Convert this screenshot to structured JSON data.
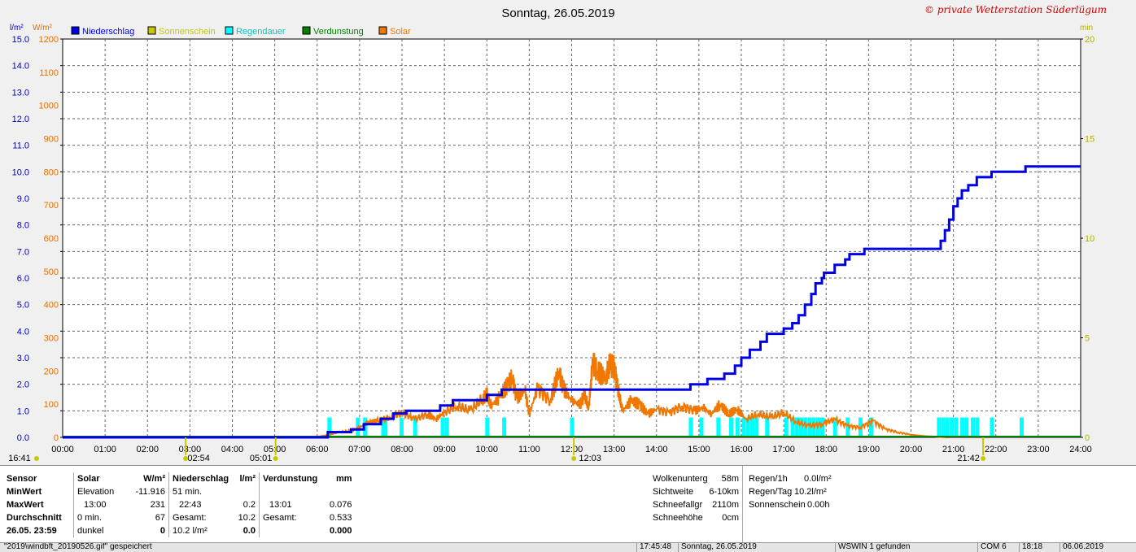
{
  "title": "Sonntag, 26.05.2019",
  "watermark": "© private Wetterstation Süderlügum",
  "units": {
    "left1": "l/m²",
    "left2": "W/m²",
    "right": "min"
  },
  "colors": {
    "rain": "#0000e6",
    "sun": "#c8c800",
    "rain_duration": "#00ffff",
    "evaporation": "#008000",
    "solar": "#f07800"
  },
  "legend": [
    {
      "label": "Niederschlag",
      "color": "#0000e6",
      "icon": "rain-legend-swatch"
    },
    {
      "label": "Sonnenschein",
      "color": "#c8c800",
      "icon": "sun-legend-swatch"
    },
    {
      "label": "Regendauer",
      "color": "#00ffff",
      "icon": "rain-duration-legend-swatch"
    },
    {
      "label": "Verdunstung",
      "color": "#008000",
      "icon": "evaporation-legend-swatch"
    },
    {
      "label": "Solar",
      "color": "#f07800",
      "icon": "solar-legend-swatch"
    }
  ],
  "chart_data": {
    "type": "line",
    "title": "Sonntag, 26.05.2019",
    "x_ticks": [
      "00:00",
      "01:00",
      "02:00",
      "03:00",
      "04:00",
      "05:00",
      "06:00",
      "07:00",
      "08:00",
      "09:00",
      "10:00",
      "11:00",
      "12:00",
      "13:00",
      "14:00",
      "15:00",
      "16:00",
      "17:00",
      "18:00",
      "19:00",
      "20:00",
      "21:00",
      "22:00",
      "23:00",
      "24:00"
    ],
    "y_left_rain_ticks": [
      "0.0",
      "1.0",
      "2.0",
      "3.0",
      "4.0",
      "5.0",
      "6.0",
      "7.0",
      "8.0",
      "9.0",
      "10.0",
      "11.0",
      "12.0",
      "13.0",
      "14.0",
      "15.0"
    ],
    "y_left_solar_ticks": [
      "0",
      "100",
      "200",
      "300",
      "400",
      "500",
      "600",
      "700",
      "800",
      "900",
      "1000",
      "1100",
      "1200"
    ],
    "y_right_ticks": [
      "0",
      "5",
      "10",
      "15",
      "20"
    ],
    "ylim_rain": [
      0,
      15
    ],
    "ylim_solar": [
      0,
      1200
    ],
    "ylim_minutes": [
      0,
      20
    ],
    "grid": true,
    "legend_position": "top-left",
    "event_labels": [
      {
        "label": "16:41",
        "hour": 0.0
      },
      {
        "label": "02:54",
        "hour": 2.9
      },
      {
        "label": "05:01",
        "hour": 5.02
      },
      {
        "label": "12:03",
        "hour": 12.05
      },
      {
        "label": "21:42",
        "hour": 21.7
      }
    ],
    "series": [
      {
        "name": "Niederschlag",
        "unit": "l/m²",
        "points": [
          [
            0,
            0
          ],
          [
            6.25,
            0
          ],
          [
            6.25,
            0.2
          ],
          [
            6.8,
            0.2
          ],
          [
            6.8,
            0.3
          ],
          [
            7.1,
            0.3
          ],
          [
            7.1,
            0.5
          ],
          [
            7.5,
            0.5
          ],
          [
            7.5,
            0.7
          ],
          [
            7.8,
            0.7
          ],
          [
            7.8,
            0.9
          ],
          [
            8.1,
            0.9
          ],
          [
            8.1,
            1.0
          ],
          [
            8.9,
            1.0
          ],
          [
            8.9,
            1.2
          ],
          [
            9.2,
            1.2
          ],
          [
            9.2,
            1.4
          ],
          [
            10.0,
            1.4
          ],
          [
            10.0,
            1.6
          ],
          [
            10.35,
            1.6
          ],
          [
            10.35,
            1.8
          ],
          [
            14.8,
            1.8
          ],
          [
            14.8,
            2.0
          ],
          [
            15.2,
            2.0
          ],
          [
            15.2,
            2.2
          ],
          [
            15.6,
            2.2
          ],
          [
            15.6,
            2.4
          ],
          [
            15.85,
            2.4
          ],
          [
            15.85,
            2.7
          ],
          [
            16.0,
            2.7
          ],
          [
            16.0,
            3.0
          ],
          [
            16.2,
            3.0
          ],
          [
            16.2,
            3.3
          ],
          [
            16.45,
            3.3
          ],
          [
            16.45,
            3.6
          ],
          [
            16.6,
            3.6
          ],
          [
            16.6,
            3.9
          ],
          [
            17.0,
            3.9
          ],
          [
            17.0,
            4.1
          ],
          [
            17.2,
            4.1
          ],
          [
            17.2,
            4.3
          ],
          [
            17.35,
            4.3
          ],
          [
            17.35,
            4.6
          ],
          [
            17.5,
            4.6
          ],
          [
            17.5,
            5.0
          ],
          [
            17.65,
            5.0
          ],
          [
            17.65,
            5.4
          ],
          [
            17.75,
            5.4
          ],
          [
            17.75,
            5.8
          ],
          [
            17.9,
            5.8
          ],
          [
            17.9,
            6.0
          ],
          [
            17.95,
            6.0
          ],
          [
            17.95,
            6.2
          ],
          [
            18.2,
            6.2
          ],
          [
            18.2,
            6.5
          ],
          [
            18.45,
            6.5
          ],
          [
            18.45,
            6.7
          ],
          [
            18.55,
            6.7
          ],
          [
            18.55,
            6.9
          ],
          [
            18.9,
            6.9
          ],
          [
            18.9,
            7.1
          ],
          [
            20.7,
            7.1
          ],
          [
            20.7,
            7.4
          ],
          [
            20.8,
            7.4
          ],
          [
            20.8,
            7.8
          ],
          [
            20.9,
            7.8
          ],
          [
            20.9,
            8.2
          ],
          [
            21.0,
            8.2
          ],
          [
            21.0,
            8.7
          ],
          [
            21.1,
            8.7
          ],
          [
            21.1,
            9.0
          ],
          [
            21.2,
            9.0
          ],
          [
            21.2,
            9.3
          ],
          [
            21.35,
            9.3
          ],
          [
            21.35,
            9.5
          ],
          [
            21.55,
            9.5
          ],
          [
            21.55,
            9.8
          ],
          [
            21.9,
            9.8
          ],
          [
            21.9,
            10.0
          ],
          [
            22.7,
            10.0
          ],
          [
            22.7,
            10.2
          ],
          [
            24,
            10.2
          ]
        ]
      },
      {
        "name": "Solar",
        "unit": "W/m²",
        "points": [
          [
            5.6,
            0
          ],
          [
            6.0,
            2
          ],
          [
            6.2,
            6
          ],
          [
            6.5,
            15
          ],
          [
            6.8,
            20
          ],
          [
            7.0,
            30
          ],
          [
            7.2,
            45
          ],
          [
            7.4,
            48
          ],
          [
            7.7,
            60
          ],
          [
            8.0,
            75
          ],
          [
            8.3,
            55
          ],
          [
            8.6,
            70
          ],
          [
            8.8,
            55
          ],
          [
            9.0,
            75
          ],
          [
            9.3,
            95
          ],
          [
            9.6,
            80
          ],
          [
            9.9,
            115
          ],
          [
            10.0,
            130
          ],
          [
            10.1,
            95
          ],
          [
            10.3,
            120
          ],
          [
            10.5,
            160
          ],
          [
            10.6,
            180
          ],
          [
            10.7,
            120
          ],
          [
            10.9,
            140
          ],
          [
            11.0,
            70
          ],
          [
            11.2,
            150
          ],
          [
            11.5,
            110
          ],
          [
            11.7,
            200
          ],
          [
            11.8,
            150
          ],
          [
            12.0,
            110
          ],
          [
            12.2,
            100
          ],
          [
            12.3,
            130
          ],
          [
            12.4,
            90
          ],
          [
            12.5,
            230
          ],
          [
            12.6,
            200
          ],
          [
            12.8,
            180
          ],
          [
            12.9,
            220
          ],
          [
            13.0,
            215
          ],
          [
            13.1,
            140
          ],
          [
            13.2,
            80
          ],
          [
            13.4,
            110
          ],
          [
            13.6,
            100
          ],
          [
            13.8,
            70
          ],
          [
            14.0,
            85
          ],
          [
            14.3,
            75
          ],
          [
            14.6,
            95
          ],
          [
            14.9,
            80
          ],
          [
            15.1,
            90
          ],
          [
            15.3,
            70
          ],
          [
            15.5,
            100
          ],
          [
            15.7,
            70
          ],
          [
            15.9,
            85
          ],
          [
            16.1,
            55
          ],
          [
            16.4,
            70
          ],
          [
            16.7,
            60
          ],
          [
            17.0,
            75
          ],
          [
            17.3,
            45
          ],
          [
            17.6,
            35
          ],
          [
            17.9,
            40
          ],
          [
            18.2,
            55
          ],
          [
            18.5,
            35
          ],
          [
            18.8,
            30
          ],
          [
            19.1,
            50
          ],
          [
            19.4,
            25
          ],
          [
            19.7,
            15
          ],
          [
            20.0,
            8
          ],
          [
            20.3,
            4
          ],
          [
            20.6,
            2
          ],
          [
            20.8,
            0
          ]
        ]
      },
      {
        "name": "Regendauer",
        "unit": "min",
        "bars": [
          [
            6.28,
            1
          ],
          [
            6.95,
            1
          ],
          [
            7.12,
            1
          ],
          [
            7.55,
            1
          ],
          [
            7.6,
            1
          ],
          [
            7.98,
            1
          ],
          [
            8.3,
            1
          ],
          [
            8.95,
            1
          ],
          [
            9.05,
            1
          ],
          [
            10.0,
            1
          ],
          [
            10.4,
            1
          ],
          [
            12.0,
            1
          ],
          [
            14.8,
            1
          ],
          [
            15.05,
            1
          ],
          [
            15.45,
            1
          ],
          [
            15.75,
            1
          ],
          [
            15.9,
            1
          ],
          [
            16.05,
            1
          ],
          [
            16.15,
            1
          ],
          [
            16.25,
            1
          ],
          [
            16.35,
            1
          ],
          [
            16.6,
            1
          ],
          [
            17.05,
            1
          ],
          [
            17.2,
            1
          ],
          [
            17.3,
            1
          ],
          [
            17.4,
            1
          ],
          [
            17.5,
            1
          ],
          [
            17.6,
            1
          ],
          [
            17.7,
            1
          ],
          [
            17.8,
            1
          ],
          [
            17.9,
            1
          ],
          [
            18.2,
            1
          ],
          [
            18.5,
            1
          ],
          [
            18.8,
            1
          ],
          [
            19.05,
            1
          ],
          [
            20.65,
            1
          ],
          [
            20.75,
            1
          ],
          [
            20.85,
            1
          ],
          [
            20.95,
            1
          ],
          [
            21.05,
            1
          ],
          [
            21.2,
            1
          ],
          [
            21.3,
            1
          ],
          [
            21.45,
            1
          ],
          [
            21.55,
            1
          ],
          [
            21.9,
            1
          ],
          [
            22.6,
            1
          ]
        ]
      },
      {
        "name": "Verdunstung",
        "unit": "mm",
        "points": [
          [
            0,
            0
          ],
          [
            24,
            0
          ]
        ]
      }
    ]
  },
  "stats": {
    "headers": [
      "Sensor",
      "Solar",
      "W/m²",
      "Niederschlag",
      "l/m²",
      "Verdunstung",
      "mm"
    ],
    "rows": [
      [
        "MinWert",
        "Elevation",
        "-11.916",
        "51 min.",
        "",
        "",
        ""
      ],
      [
        "MaxWert",
        "13:00",
        "231",
        "22:43",
        "0.2",
        "13:01",
        "0.076"
      ],
      [
        "Durchschnitt",
        "0 min.",
        "67",
        "Gesamt:",
        "10.2",
        "Gesamt:",
        "0.533"
      ],
      [
        "26.05. 23:59",
        "dunkel",
        "0",
        "10.2 l/m²",
        "0.0",
        "",
        "0.000"
      ]
    ]
  },
  "info1": [
    {
      "label": "Wolkenunterg",
      "value": "58m"
    },
    {
      "label": "Sichtweite",
      "value": "6-10km"
    },
    {
      "label": "Schneefallgr",
      "value": "2110m"
    },
    {
      "label": "Schneehöhe",
      "value": "0cm"
    }
  ],
  "info2": [
    {
      "label": "Regen/1h",
      "value": "0.0l/m²"
    },
    {
      "label": "Regen/Tag",
      "value": "10.2l/m²"
    },
    {
      "label": "Sonnenschein",
      "value": "0.00h"
    }
  ],
  "statusbar": {
    "message": "\"2019\\windbft_20190526.gif\" gespeichert",
    "time1": "17:45:48",
    "date1": "Sonntag, 26.05.2019",
    "device": "WSWIN 1 gefunden",
    "port": "COM 6",
    "time2": "18:18",
    "date2": "06.06.2019"
  }
}
